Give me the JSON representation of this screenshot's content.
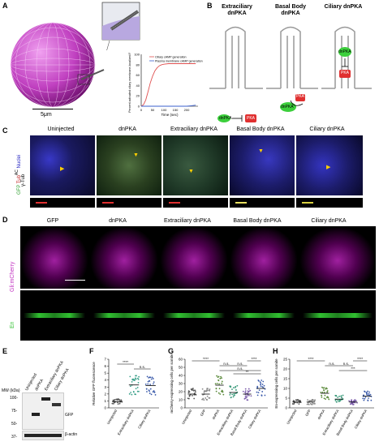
{
  "panels": {
    "A": {
      "label": "A",
      "scale_bar": "5μm",
      "chart_data": {
        "type": "line",
        "title": "",
        "xlabel": "Time (sec)",
        "ylabel": "Percent activated ciliary membrane-localized PKA",
        "x_ticks": [
          "0",
          "50",
          "100",
          "150",
          "200"
        ],
        "y_ticks": [
          "0",
          "20",
          "40",
          "60",
          "80",
          "100"
        ],
        "xlim": [
          0,
          250
        ],
        "ylim": [
          0,
          100
        ],
        "series": [
          {
            "name": "Ciliary cAMP generation",
            "color": "#e05050",
            "x": [
              0,
              10,
              20,
              30,
              40,
              50,
              60,
              70,
              80,
              90,
              100,
              120,
              140,
              160,
              180,
              200,
              220,
              240
            ],
            "y": [
              0,
              3,
              12,
              28,
              45,
              58,
              68,
              74,
              78,
              80,
              81,
              82,
              82,
              82,
              82,
              82,
              82,
              82
            ]
          },
          {
            "name": "Plasma membrane cAMP generation",
            "color": "#3a5fcd",
            "x": [
              0,
              20,
              40,
              60,
              80,
              100,
              120,
              140,
              160,
              180,
              200,
              220,
              240
            ],
            "y": [
              0,
              0,
              0,
              0,
              0,
              0,
              0,
              0,
              0,
              0,
              0,
              1,
              2
            ]
          }
        ]
      }
    },
    "B": {
      "label": "B",
      "titles": [
        "Extraciliary dnPKA",
        "Basal Body dnPKA",
        "Ciliary dnPKA"
      ],
      "dnpka": "dnPKA",
      "pka": "PKA"
    },
    "C": {
      "label": "C",
      "columns": [
        "Uninjected",
        "dnPKA",
        "Extraciliary dnPKA",
        "Basal Body dnPKA",
        "Ciliary dnPKA"
      ],
      "side_gfp": "GFP",
      "side_tub": "Tub",
      "side_tub_sup": "AC",
      "side_nuclei": "Nuclei",
      "side_gtub": "γ-Tub"
    },
    "D": {
      "label": "D",
      "columns": [
        "GFP",
        "dnPKA",
        "Extraciliary dnPKA",
        "Basal Body dnPKA",
        "Ciliary dnPKA"
      ],
      "row1": "Gli:mCherry",
      "row2": "En"
    },
    "E": {
      "label": "E",
      "mw_label": "MW (kDa)",
      "mw": [
        "100-",
        "75-",
        "50-",
        "37-"
      ],
      "lanes": [
        "Uninjected",
        "dnPKA",
        "Extraciliary dnPKA",
        "Ciliary dnPKA"
      ],
      "band_gfp": "GFP",
      "band_actin": "β-actin"
    },
    "F": {
      "label": "F",
      "chart_data": {
        "type": "scatter",
        "ylabel": "Relative GFP fluorescence",
        "y_ticks": [
          "0",
          "1",
          "2",
          "3",
          "4",
          "5",
          "6",
          "7"
        ],
        "ylim": [
          0,
          7
        ],
        "categories": [
          "Uninjected",
          "Extraciliary dnPKA",
          "Ciliary dnPKA"
        ],
        "means": [
          0.9,
          3.3,
          3.2
        ],
        "sig": [
          "****",
          "n.s."
        ]
      }
    },
    "G": {
      "label": "G",
      "chart_data": {
        "type": "scatter",
        "ylabel": "mCherry-expressing cells per somite",
        "y_ticks": [
          "0",
          "10",
          "20",
          "30",
          "40",
          "50",
          "60"
        ],
        "ylim": [
          0,
          60
        ],
        "categories": [
          "Uninjected",
          "GFP",
          "dnPKA",
          "Extraciliary dnPKA",
          "Basal Body dnPKA",
          "Ciliary dnPKA"
        ],
        "means": [
          17,
          17,
          28,
          19,
          17,
          24
        ],
        "sig": [
          "****",
          "n.s.",
          "n.s.",
          "****",
          "n.s.",
          "**"
        ]
      }
    },
    "H": {
      "label": "H",
      "chart_data": {
        "type": "scatter",
        "ylabel": "En-expressing cells per somite",
        "y_ticks": [
          "0",
          "5",
          "10",
          "15",
          "20",
          "25"
        ],
        "ylim": [
          0,
          25
        ],
        "categories": [
          "Uninjected",
          "GFP",
          "dnPKA",
          "Extraciliary dnPKA",
          "Basal Body dnPKA",
          "Ciliary dnPKA"
        ],
        "means": [
          3,
          3,
          7.5,
          4.5,
          3,
          6
        ],
        "sig": [
          "****",
          "n.s.",
          "n.s.",
          "****",
          "***"
        ]
      }
    }
  },
  "colors": {
    "sphere": "#c040c0",
    "red": "#e03030",
    "green": "#3ccf3c",
    "magenta": "#d030d0",
    "nuclei": "#3030c0"
  }
}
